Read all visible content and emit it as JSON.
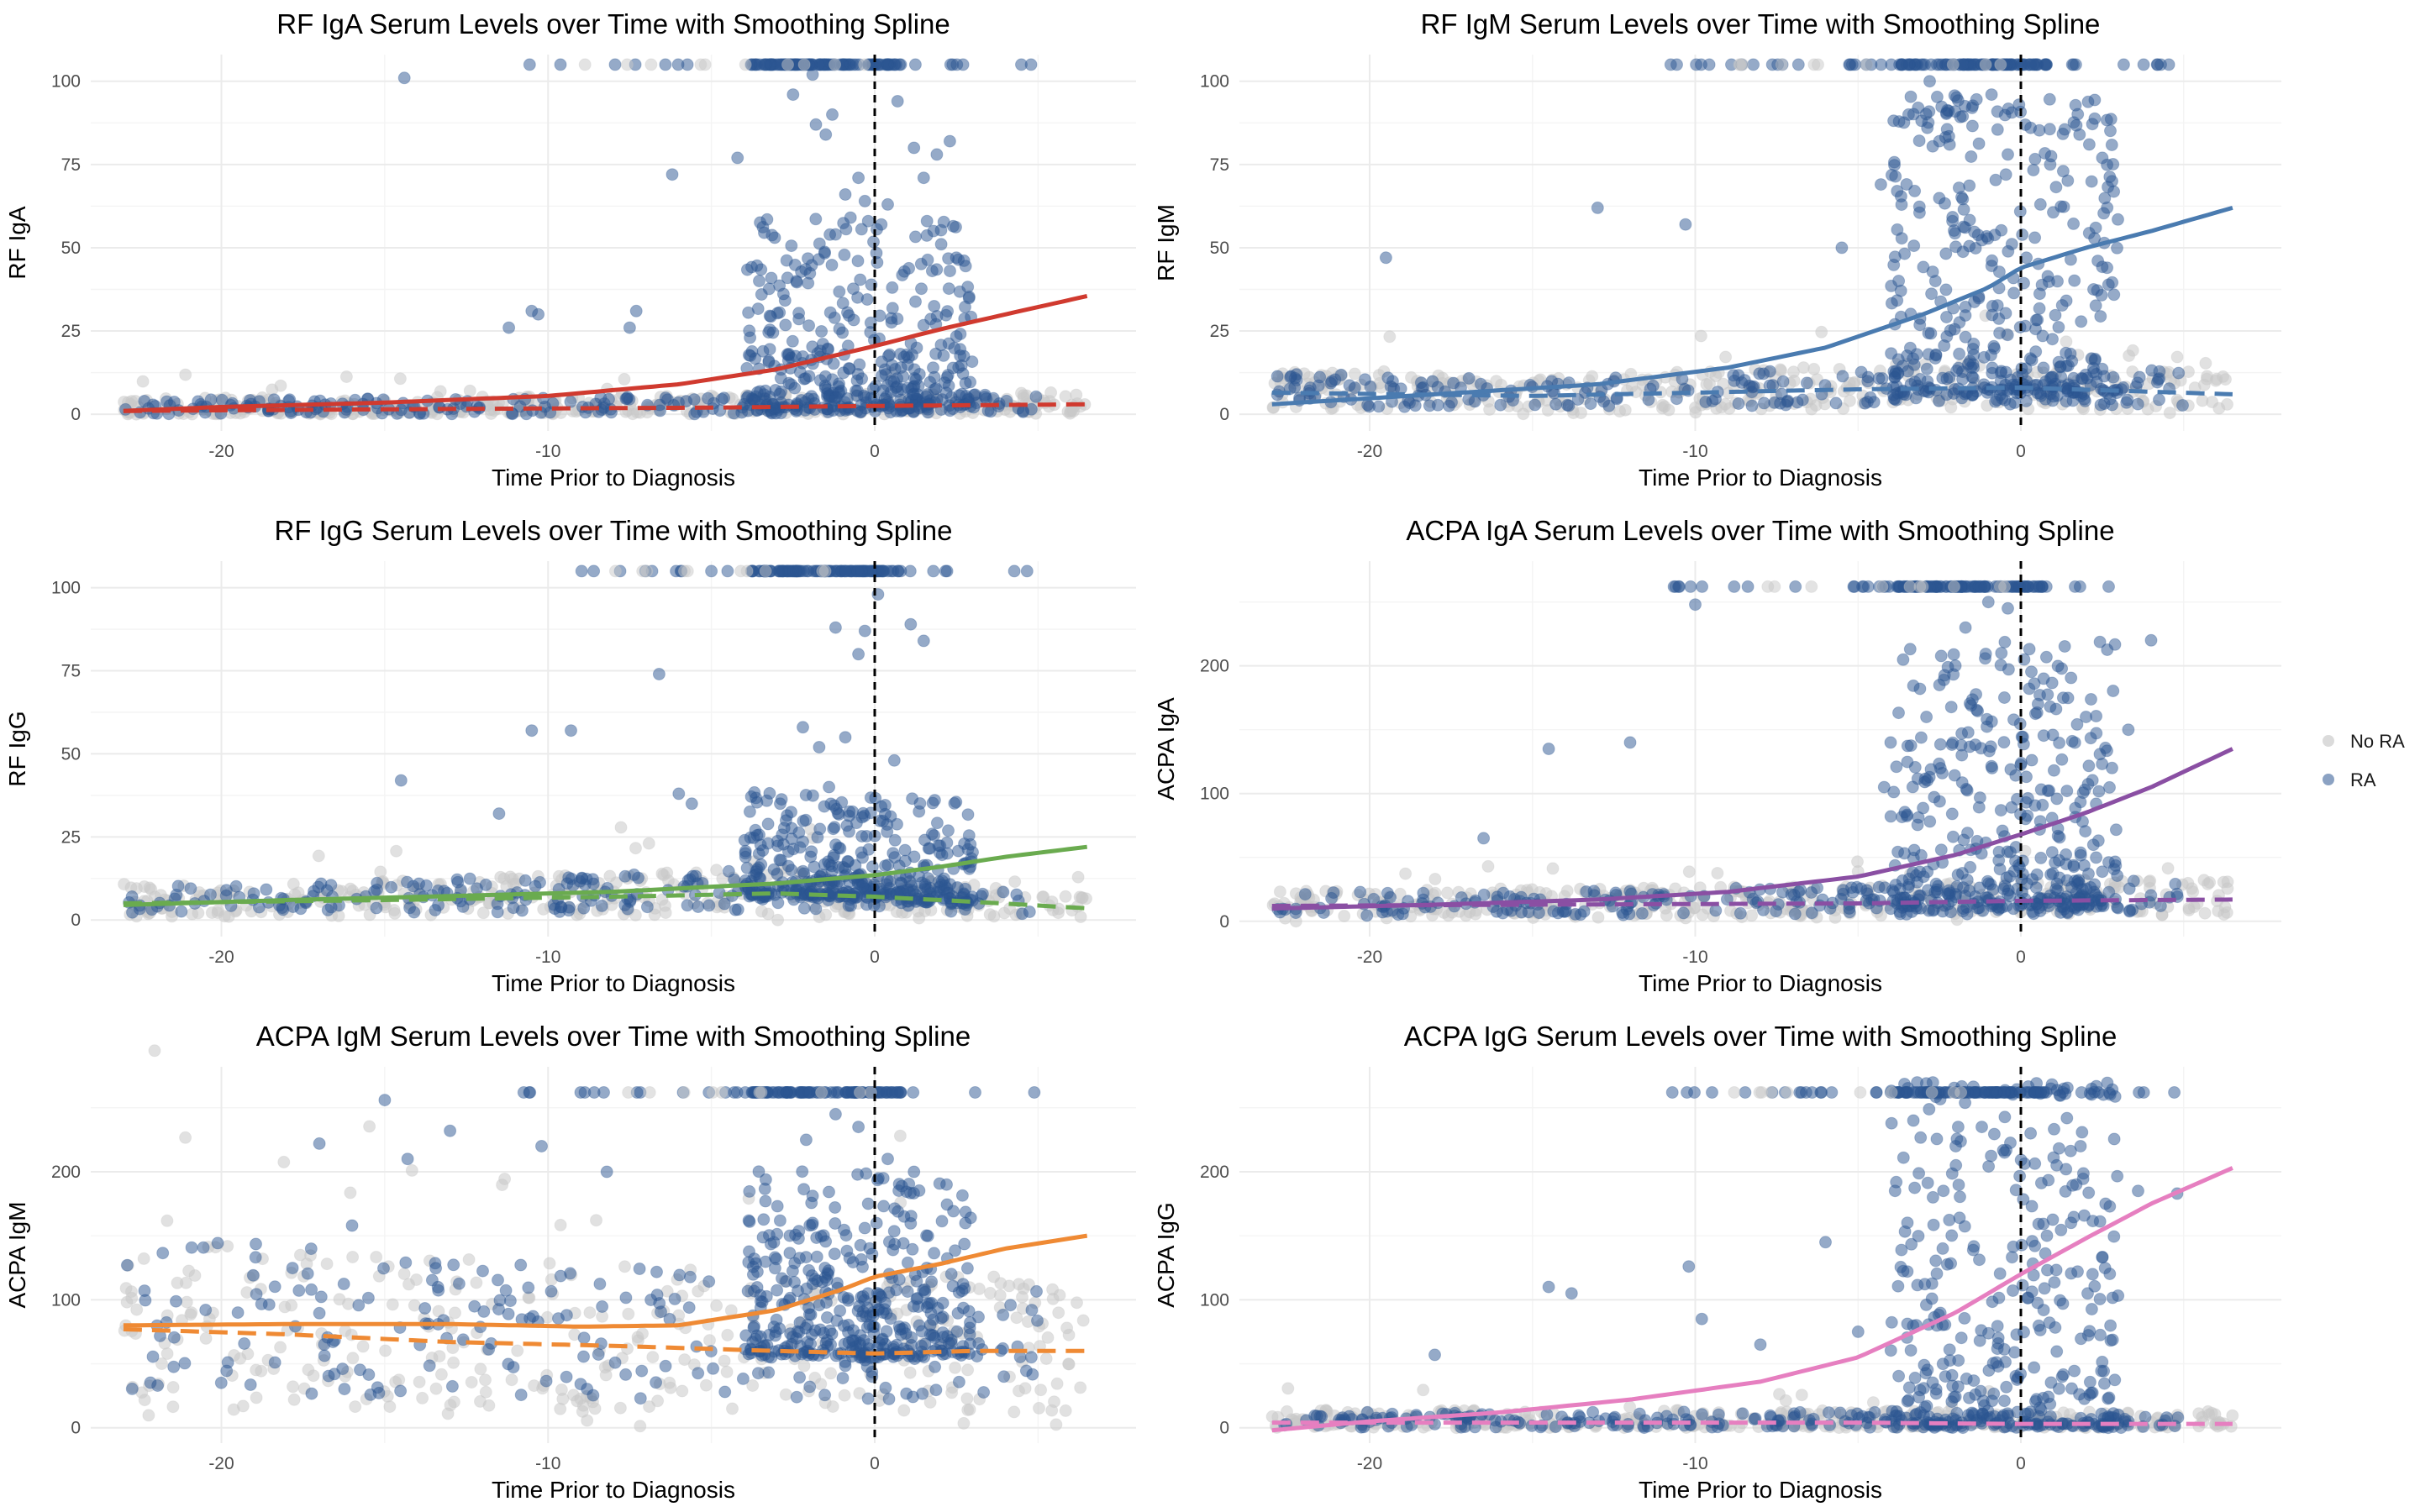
{
  "legend": {
    "items": [
      {
        "label": "No RA",
        "color": "#c8c8c8"
      },
      {
        "label": "RA",
        "color": "#2c5592"
      }
    ]
  },
  "chart_data": [
    {
      "type": "scatter",
      "title": "RF IgA Serum Levels over Time with Smoothing Spline",
      "xlabel": "Time Prior to Diagnosis",
      "ylabel": "RF IgA",
      "xlim": [
        -24,
        8
      ],
      "ylim": [
        -5,
        108
      ],
      "xticks": [
        -20,
        -10,
        0
      ],
      "yticks": [
        0,
        25,
        50,
        75,
        100
      ],
      "vline_x": 0,
      "line_color": "#d03a2f",
      "cap_value": 105,
      "spread_ra": 22,
      "seed": 11,
      "ra_points": [
        [
          -14.4,
          101
        ],
        [
          -11.2,
          26
        ],
        [
          -10.5,
          31
        ],
        [
          -10.3,
          30
        ],
        [
          -7.5,
          26
        ],
        [
          -7.3,
          31
        ],
        [
          -6.2,
          72
        ],
        [
          -4.2,
          77
        ],
        [
          -2.5,
          96
        ],
        [
          -1.9,
          102
        ],
        [
          -1.8,
          87
        ],
        [
          -1.5,
          84
        ],
        [
          -1.3,
          90
        ],
        [
          -0.9,
          66
        ],
        [
          -0.5,
          71
        ],
        [
          -0.3,
          64
        ],
        [
          -0.2,
          58
        ],
        [
          0.4,
          63
        ],
        [
          0.7,
          94
        ],
        [
          1.2,
          80
        ],
        [
          1.5,
          71
        ],
        [
          1.9,
          78
        ],
        [
          2.3,
          82
        ],
        [
          1.6,
          58
        ],
        [
          1.8,
          55
        ],
        [
          -1.2,
          54
        ],
        [
          0.2,
          57
        ]
      ],
      "series": [
        {
          "name": "RA",
          "x": [
            -23,
            -20,
            -15,
            -10,
            -6,
            -3,
            0,
            2,
            4,
            6.5
          ],
          "y": [
            1,
            2.2,
            3.5,
            5.5,
            9,
            13.5,
            20.5,
            25.5,
            30,
            35.5
          ]
        },
        {
          "name": "No RA",
          "x": [
            -23,
            -15,
            -5,
            0,
            6.5
          ],
          "y": [
            1,
            1.5,
            2,
            2.5,
            3
          ]
        }
      ]
    },
    {
      "type": "scatter",
      "title": "RF IgM Serum Levels over Time with Smoothing Spline",
      "xlabel": "Time Prior to Diagnosis",
      "ylabel": "RF IgM",
      "xlim": [
        -24,
        8
      ],
      "ylim": [
        -5,
        108
      ],
      "xticks": [
        -20,
        -10,
        0
      ],
      "yticks": [
        0,
        25,
        50,
        75,
        100
      ],
      "vline_x": 0,
      "line_color": "#4a7bb0",
      "cap_value": 105,
      "spread_ra": 40,
      "seed": 23,
      "ra_points": [
        [
          -19.5,
          47
        ],
        [
          -13,
          62
        ],
        [
          -10.3,
          57
        ],
        [
          -5.5,
          50
        ],
        [
          -4.3,
          69
        ],
        [
          -3.8,
          67
        ],
        [
          -2.8,
          100
        ],
        [
          -2.5,
          82
        ],
        [
          -1.5,
          92
        ],
        [
          -0.9,
          96
        ],
        [
          -0.4,
          78
        ],
        [
          0.3,
          86
        ],
        [
          0.9,
          75
        ],
        [
          1.3,
          73
        ],
        [
          1.8,
          84
        ],
        [
          2.1,
          81
        ],
        [
          2.5,
          77
        ],
        [
          2.8,
          70
        ],
        [
          -1.9,
          68
        ],
        [
          0.6,
          63
        ],
        [
          2.3,
          56
        ]
      ],
      "series": [
        {
          "name": "RA",
          "x": [
            -23,
            -18,
            -13,
            -9,
            -6,
            -3,
            -1,
            0,
            2,
            4,
            6.5
          ],
          "y": [
            3,
            6,
            9,
            14,
            20,
            30,
            38,
            44,
            50,
            55,
            62
          ]
        },
        {
          "name": "No RA",
          "x": [
            -23,
            -15,
            -5,
            0,
            6.5
          ],
          "y": [
            6.5,
            5.5,
            7.5,
            8,
            6
          ]
        }
      ]
    },
    {
      "type": "scatter",
      "title": "RF IgG Serum Levels over Time with Smoothing Spline",
      "xlabel": "Time Prior to Diagnosis",
      "ylabel": "RF IgG",
      "xlim": [
        -24,
        8
      ],
      "ylim": [
        -5,
        108
      ],
      "xticks": [
        -20,
        -10,
        0
      ],
      "yticks": [
        0,
        25,
        50,
        75,
        100
      ],
      "vline_x": 0,
      "line_color": "#6aab4f",
      "cap_value": 105,
      "spread_ra": 12,
      "seed": 37,
      "ra_points": [
        [
          -14.5,
          42
        ],
        [
          -11.5,
          32
        ],
        [
          -10.5,
          57
        ],
        [
          -9.3,
          57
        ],
        [
          -6.6,
          74
        ],
        [
          -6,
          38
        ],
        [
          -5.6,
          35
        ],
        [
          -2.2,
          58
        ],
        [
          -1.2,
          88
        ],
        [
          -0.5,
          80
        ],
        [
          -0.3,
          87
        ],
        [
          0.1,
          98
        ],
        [
          1.1,
          89
        ],
        [
          1.5,
          84
        ],
        [
          -1.7,
          52
        ],
        [
          -0.9,
          55
        ],
        [
          0.6,
          48
        ],
        [
          -1.4,
          40
        ]
      ],
      "series": [
        {
          "name": "RA",
          "x": [
            -23,
            -18,
            -13,
            -8,
            -3,
            0,
            2,
            4,
            6.5
          ],
          "y": [
            4.5,
            6,
            7.2,
            8.5,
            11,
            13.5,
            16,
            19,
            22
          ]
        },
        {
          "name": "No RA",
          "x": [
            -23,
            -15,
            -8,
            -3,
            0,
            3,
            6.5
          ],
          "y": [
            5,
            6,
            7,
            8,
            7,
            5.5,
            3.5
          ]
        }
      ]
    },
    {
      "type": "scatter",
      "title": "ACPA IgA Serum Levels over Time with Smoothing Spline",
      "xlabel": "Time Prior to Diagnosis",
      "ylabel": "ACPA IgA",
      "xlim": [
        -24,
        8
      ],
      "ylim": [
        -12,
        282
      ],
      "xticks": [
        -20,
        -10,
        0
      ],
      "yticks": [
        0,
        100,
        200
      ],
      "vline_x": 0,
      "line_color": "#8a4fa3",
      "cap_value": 262,
      "spread_ra": 80,
      "seed": 41,
      "ra_points": [
        [
          -10,
          248
        ],
        [
          -14.5,
          135
        ],
        [
          -12,
          140
        ],
        [
          -16.5,
          65
        ],
        [
          -4.2,
          105
        ],
        [
          -4,
          140
        ],
        [
          -3.1,
          182
        ],
        [
          -2.5,
          185
        ],
        [
          -1.7,
          230
        ],
        [
          -1,
          250
        ],
        [
          -0.4,
          245
        ],
        [
          0.1,
          205
        ],
        [
          0.7,
          190
        ],
        [
          1.3,
          175
        ],
        [
          2,
          160
        ],
        [
          2.8,
          120
        ],
        [
          3.3,
          150
        ],
        [
          4,
          220
        ],
        [
          -2.9,
          160
        ],
        [
          -0.6,
          210
        ],
        [
          0.9,
          168
        ]
      ],
      "series": [
        {
          "name": "RA",
          "x": [
            -23,
            -18,
            -13,
            -9,
            -5,
            -2,
            0,
            2,
            4,
            6.5
          ],
          "y": [
            10,
            13,
            17,
            23,
            35,
            52,
            68,
            85,
            105,
            135
          ]
        },
        {
          "name": "No RA",
          "x": [
            -23,
            -15,
            -5,
            0,
            6.5
          ],
          "y": [
            12,
            13,
            14,
            16,
            17
          ]
        }
      ]
    },
    {
      "type": "scatter",
      "title": "ACPA IgM Serum Levels over Time with Smoothing Spline",
      "xlabel": "Time Prior to Diagnosis",
      "ylabel": "ACPA IgM",
      "xlim": [
        -24,
        8
      ],
      "ylim": [
        -12,
        282
      ],
      "xticks": [
        -20,
        -10,
        0
      ],
      "yticks": [
        0,
        100,
        200
      ],
      "vline_x": 0,
      "line_color": "#ef8a34",
      "cap_value": 262,
      "spread_ra": 55,
      "seed": 53,
      "ra_points": [
        [
          -17,
          222
        ],
        [
          -16,
          158
        ],
        [
          -15,
          256
        ],
        [
          -14.3,
          210
        ],
        [
          -13,
          232
        ],
        [
          -10.2,
          220
        ],
        [
          -8.2,
          200
        ],
        [
          -2.1,
          225
        ],
        [
          -1.2,
          245
        ],
        [
          -0.5,
          235
        ],
        [
          0.4,
          210
        ],
        [
          1.2,
          200
        ],
        [
          2.2,
          190
        ],
        [
          -1.9,
          160
        ],
        [
          -0.2,
          175
        ],
        [
          0.9,
          165
        ],
        [
          -2.6,
          150
        ]
      ],
      "series": [
        {
          "name": "RA",
          "x": [
            -23,
            -18,
            -13,
            -9,
            -6,
            -3,
            -1,
            0,
            2,
            4,
            6.5
          ],
          "y": [
            80,
            81,
            81,
            79,
            80,
            92,
            108,
            118,
            128,
            140,
            150
          ]
        },
        {
          "name": "No RA",
          "x": [
            -23,
            -18,
            -13,
            -8,
            -3,
            0,
            3,
            6.5
          ],
          "y": [
            77,
            73,
            67,
            64,
            60,
            58,
            60,
            60
          ]
        }
      ]
    },
    {
      "type": "scatter",
      "title": "ACPA IgG Serum Levels over Time with Smoothing Spline",
      "xlabel": "Time Prior to Diagnosis",
      "ylabel": "ACPA IgG",
      "xlim": [
        -24,
        8
      ],
      "ylim": [
        -12,
        282
      ],
      "xticks": [
        -20,
        -10,
        0
      ],
      "yticks": [
        0,
        100,
        200
      ],
      "vline_x": 0,
      "line_color": "#e67fc0",
      "cap_value": 262,
      "spread_ra": 130,
      "seed": 67,
      "ra_points": [
        [
          -18,
          57
        ],
        [
          -14.5,
          110
        ],
        [
          -13.8,
          105
        ],
        [
          -10.2,
          126
        ],
        [
          -9.8,
          85
        ],
        [
          -8,
          65
        ],
        [
          -6,
          145
        ],
        [
          -5,
          75
        ],
        [
          -3.3,
          240
        ],
        [
          -2.7,
          180
        ],
        [
          -2,
          220
        ],
        [
          -1.2,
          235
        ],
        [
          -0.5,
          215
        ],
        [
          0.3,
          230
        ],
        [
          1.1,
          205
        ],
        [
          1.7,
          190
        ],
        [
          2.6,
          175
        ],
        [
          3.6,
          185
        ],
        [
          4.8,
          183
        ],
        [
          -2.4,
          140
        ],
        [
          0.8,
          150
        ],
        [
          2.2,
          120
        ]
      ],
      "series": [
        {
          "name": "RA",
          "x": [
            -23,
            -20,
            -16,
            -12,
            -8,
            -5,
            -2,
            0,
            2,
            4,
            6.5
          ],
          "y": [
            -2,
            5,
            12,
            22,
            36,
            55,
            90,
            120,
            148,
            175,
            203
          ]
        },
        {
          "name": "No RA",
          "x": [
            -23,
            -15,
            -5,
            0,
            6.5
          ],
          "y": [
            4,
            4,
            4,
            3,
            3
          ]
        }
      ]
    }
  ]
}
